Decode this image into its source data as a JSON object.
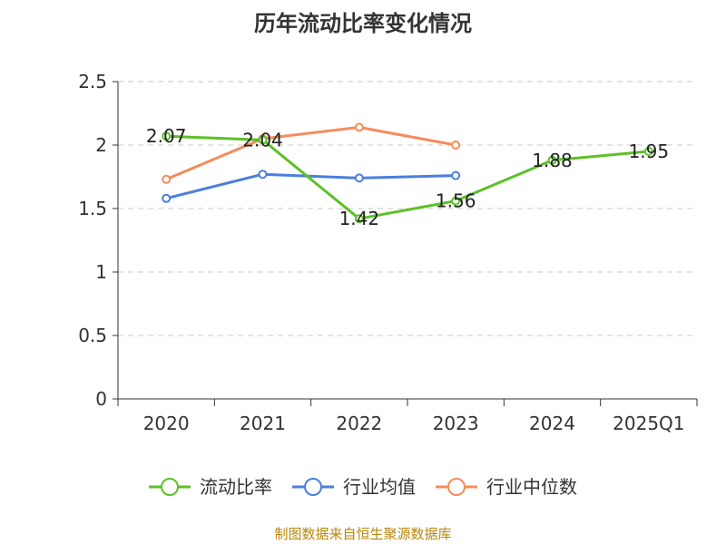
{
  "chart_data": {
    "type": "line",
    "title": "历年流动比率变化情况",
    "xlabel": "",
    "ylabel": "",
    "categories": [
      "2020",
      "2021",
      "2022",
      "2023",
      "2024",
      "2025Q1"
    ],
    "ylim": [
      0,
      2.5
    ],
    "yticks": [
      "0",
      "0.5",
      "1",
      "1.5",
      "2",
      "2.5"
    ],
    "grid": true,
    "legend_position": "bottom",
    "series": [
      {
        "name": "流动比率",
        "color": "#5bc127",
        "values": [
          2.07,
          2.04,
          1.42,
          1.56,
          1.88,
          1.95
        ],
        "labels": [
          "2.07",
          "2.04",
          "1.42",
          "1.56",
          "1.88",
          "1.95"
        ]
      },
      {
        "name": "行业均值",
        "color": "#4a7fdc",
        "values": [
          1.58,
          1.77,
          1.74,
          1.76,
          null,
          null
        ]
      },
      {
        "name": "行业中位数",
        "color": "#f58c5b",
        "values": [
          1.73,
          2.05,
          2.14,
          2.0,
          null,
          null
        ]
      }
    ]
  },
  "source": "制图数据来自恒生聚源数据库"
}
